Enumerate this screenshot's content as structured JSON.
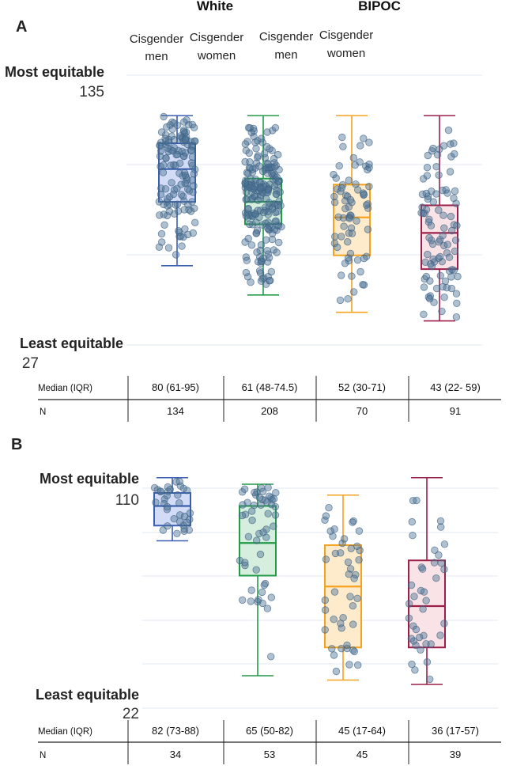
{
  "chart_data": [
    {
      "type": "box",
      "panel_label": "A",
      "group_labels": [
        "White",
        "BIPOC"
      ],
      "categories": [
        {
          "line1": "Cisgender",
          "line2": "men"
        },
        {
          "line1": "Cisgender",
          "line2": "women"
        },
        {
          "line1": "Cisgender",
          "line2": "men"
        },
        {
          "line1": "Cisgender",
          "line2": "women"
        }
      ],
      "y_top_label": "Most equitable",
      "y_top_value": "135",
      "y_bottom_label": "Least equitable",
      "y_bottom_value": "27",
      "grid": true,
      "boxes": [
        {
          "median": 80,
          "q1": 61,
          "q3": 95,
          "whisker_low": 24,
          "whisker_high": 111,
          "n": 134
        },
        {
          "median": 61,
          "q1": 48,
          "q3": 74.5,
          "whisker_low": 7,
          "whisker_high": 111,
          "n": 208
        },
        {
          "median": 52,
          "q1": 30,
          "q3": 71,
          "whisker_low": -3,
          "whisker_high": 111,
          "n": 70
        },
        {
          "median": 43,
          "q1": 22,
          "q3": 59,
          "whisker_low": -8,
          "whisker_high": 111,
          "n": 91
        }
      ],
      "table": {
        "row_labels": [
          "Median (IQR)",
          "N"
        ],
        "median_iqr": [
          "80 (61-95)",
          "61 (48-74.5)",
          "52 (30-71)",
          "43 (22- 59)"
        ],
        "n": [
          "134",
          "208",
          "70",
          "91"
        ]
      }
    },
    {
      "type": "box",
      "panel_label": "B",
      "y_top_label": "Most equitable",
      "y_top_value": "110",
      "y_bottom_label": "Least equitable",
      "y_bottom_value": "22",
      "grid": true,
      "boxes": [
        {
          "median": 82,
          "q1": 73,
          "q3": 88,
          "whisker_low": 66,
          "whisker_high": 95,
          "n": 34
        },
        {
          "median": 65,
          "q1": 50,
          "q3": 82,
          "whisker_low": 4,
          "whisker_high": 92,
          "n": 53
        },
        {
          "median": 45,
          "q1": 17,
          "q3": 64,
          "whisker_low": 2,
          "whisker_high": 87,
          "n": 45
        },
        {
          "median": 36,
          "q1": 17,
          "q3": 57,
          "whisker_low": 0,
          "whisker_high": 95,
          "n": 39
        }
      ],
      "table": {
        "row_labels": [
          "Median (IQR)",
          "N"
        ],
        "median_iqr": [
          "82 (73-88)",
          "65 (50-82)",
          "45 (17-64)",
          "36 (17-57)"
        ],
        "n": [
          "34",
          "53",
          "45",
          "39"
        ]
      }
    }
  ],
  "colors": {
    "white_men": "#3a5fb0",
    "white_women": "#229a48",
    "bipoc_men": "#f5a21e",
    "bipoc_women": "#9c1f4a",
    "white_men_fill": "#d3dcf7",
    "white_women_fill": "#d6eedd",
    "bipoc_men_fill": "#fdebcc",
    "bipoc_women_fill": "#fae3e6",
    "points": "#4d7396"
  }
}
